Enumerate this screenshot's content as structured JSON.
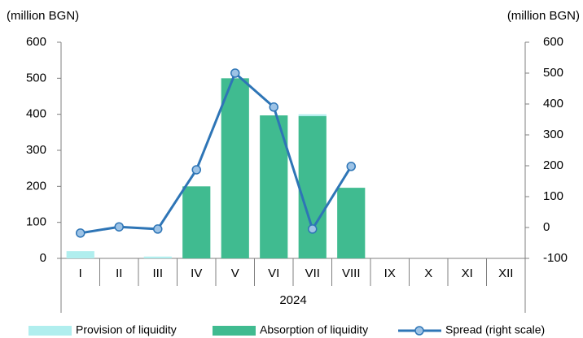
{
  "chart_data": {
    "type": "bar",
    "stacked": true,
    "y_label": "(million BGN)",
    "y2_label": "(million BGN)",
    "x_label": "2024",
    "categories": [
      "I",
      "II",
      "III",
      "IV",
      "V",
      "VI",
      "VII",
      "VIII",
      "IX",
      "X",
      "XI",
      "XII"
    ],
    "series": [
      {
        "name": "Provision of liquidity",
        "color": "#b0eeee",
        "type": "bar",
        "values": [
          20,
          0,
          5,
          0,
          0,
          0,
          5,
          0,
          null,
          null,
          null,
          null
        ]
      },
      {
        "name": "Absorption of liquidity",
        "color": "#40bb90",
        "type": "bar",
        "values": [
          0,
          0,
          0,
          200,
          500,
          397,
          395,
          196,
          null,
          null,
          null,
          null
        ]
      },
      {
        "name": "Spread (right scale)",
        "color": "#2e75b6",
        "marker_color": "#9dc3e6",
        "type": "line",
        "axis": "y2",
        "values": [
          -18,
          2,
          -5,
          187,
          500,
          390,
          -5,
          198,
          null,
          null,
          null,
          null
        ]
      }
    ],
    "ylim": [
      0,
      600
    ],
    "yticks": [
      0,
      100,
      200,
      300,
      400,
      500,
      600
    ],
    "y2lim": [
      -100,
      600
    ],
    "y2ticks": [
      -100,
      0,
      100,
      200,
      300,
      400,
      500,
      600
    ],
    "grid": false,
    "legend": "bottom"
  }
}
